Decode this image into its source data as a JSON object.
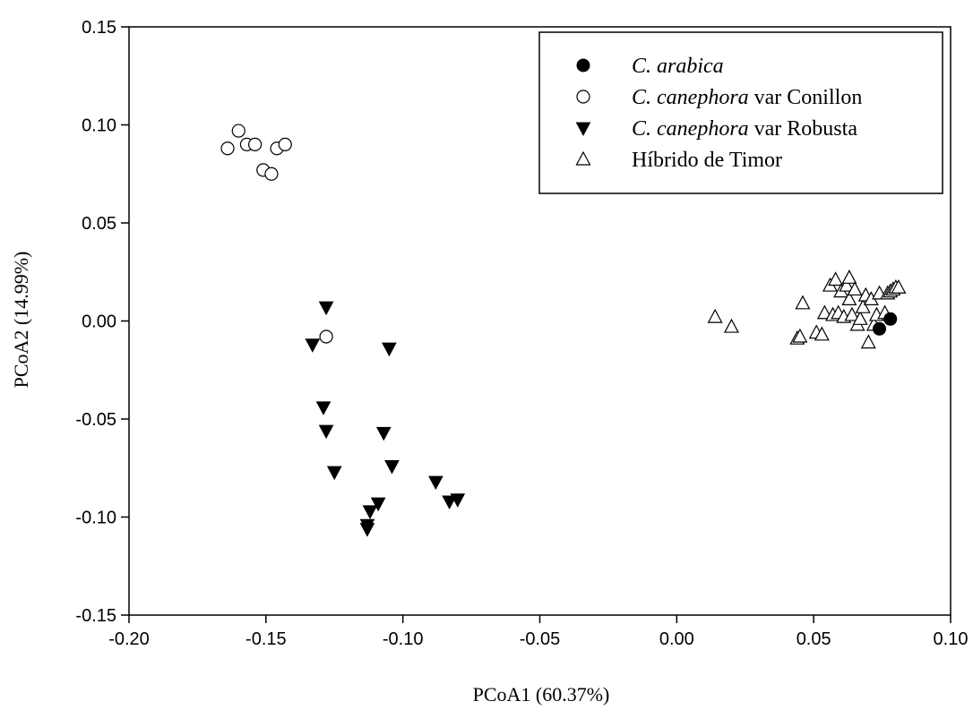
{
  "chart_data": {
    "type": "scatter",
    "title": "",
    "xlabel": "PCoA1 (60.37%)",
    "ylabel": "PCoA2 (14.99%)",
    "xlim": [
      -0.2,
      0.1
    ],
    "ylim": [
      -0.15,
      0.15
    ],
    "x_ticks": [
      "-0.20",
      "-0.15",
      "-0.10",
      "-0.05",
      "0.00",
      "0.05",
      "0.10"
    ],
    "y_ticks": [
      "-0.15",
      "-0.10",
      "-0.05",
      "0.00",
      "0.05",
      "0.10",
      "0.15"
    ],
    "grid": false,
    "legend_position": "top-right",
    "series": [
      {
        "legend_italic": "C. arabica",
        "legend_rest": "",
        "marker": "filled-circle",
        "color": "#000000",
        "points": [
          [
            0.074,
            -0.004
          ],
          [
            0.078,
            0.001
          ]
        ]
      },
      {
        "legend_italic": "C. canephora",
        "legend_rest": " var Conillon",
        "marker": "open-circle",
        "color": "#000000",
        "points": [
          [
            -0.164,
            0.088
          ],
          [
            -0.16,
            0.097
          ],
          [
            -0.157,
            0.09
          ],
          [
            -0.154,
            0.09
          ],
          [
            -0.151,
            0.077
          ],
          [
            -0.148,
            0.075
          ],
          [
            -0.146,
            0.088
          ],
          [
            -0.143,
            0.09
          ],
          [
            -0.128,
            -0.008
          ]
        ]
      },
      {
        "legend_italic": "C. canephora",
        "legend_rest": " var Robusta",
        "marker": "filled-triangle-down",
        "color": "#000000",
        "points": [
          [
            -0.128,
            0.007
          ],
          [
            -0.133,
            -0.012
          ],
          [
            -0.105,
            -0.014
          ],
          [
            -0.129,
            -0.044
          ],
          [
            -0.128,
            -0.056
          ],
          [
            -0.107,
            -0.057
          ],
          [
            -0.104,
            -0.074
          ],
          [
            -0.125,
            -0.077
          ],
          [
            -0.088,
            -0.082
          ],
          [
            -0.083,
            -0.092
          ],
          [
            -0.08,
            -0.091
          ],
          [
            -0.109,
            -0.093
          ],
          [
            -0.112,
            -0.097
          ],
          [
            -0.113,
            -0.104
          ],
          [
            -0.113,
            -0.106
          ]
        ]
      },
      {
        "legend_italic": "",
        "legend_rest": "Híbrido de Timor",
        "marker": "open-triangle-up",
        "color": "#000000",
        "points": [
          [
            0.014,
            0.002
          ],
          [
            0.02,
            -0.003
          ],
          [
            0.044,
            -0.009
          ],
          [
            0.045,
            -0.008
          ],
          [
            0.046,
            0.009
          ],
          [
            0.051,
            -0.006
          ],
          [
            0.053,
            -0.007
          ],
          [
            0.054,
            0.004
          ],
          [
            0.056,
            0.018
          ],
          [
            0.057,
            0.003
          ],
          [
            0.058,
            0.021
          ],
          [
            0.059,
            0.004
          ],
          [
            0.06,
            0.015
          ],
          [
            0.061,
            0.002
          ],
          [
            0.062,
            0.018
          ],
          [
            0.063,
            0.022
          ],
          [
            0.063,
            0.011
          ],
          [
            0.064,
            0.003
          ],
          [
            0.065,
            0.016
          ],
          [
            0.066,
            -0.002
          ],
          [
            0.067,
            0.001
          ],
          [
            0.068,
            0.007
          ],
          [
            0.069,
            0.013
          ],
          [
            0.07,
            -0.011
          ],
          [
            0.071,
            0.011
          ],
          [
            0.072,
            -0.002
          ],
          [
            0.073,
            0.003
          ],
          [
            0.074,
            0.014
          ],
          [
            0.076,
            0.004
          ],
          [
            0.077,
            0.014
          ],
          [
            0.078,
            0.015
          ],
          [
            0.079,
            0.016
          ],
          [
            0.08,
            0.017
          ],
          [
            0.081,
            0.017
          ]
        ]
      }
    ]
  }
}
